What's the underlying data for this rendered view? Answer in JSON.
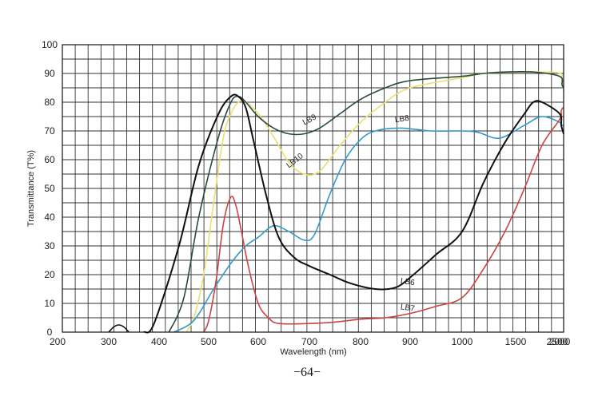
{
  "chart_data": {
    "type": "line",
    "xlabel": "Wavelength (nm)",
    "ylabel": "Transmittance (T%)",
    "ylim": [
      0,
      100
    ],
    "grid": true,
    "x_ticks": [
      "200",
      "300",
      "400",
      "500",
      "600",
      "700",
      "800",
      "900",
      "1000",
      "1500",
      "2000",
      "2500"
    ],
    "y_ticks": [
      "0",
      "10",
      "20",
      "30",
      "40",
      "50",
      "60",
      "70",
      "80",
      "90",
      "100"
    ],
    "x_tick_values": [
      200,
      300,
      400,
      500,
      600,
      700,
      800,
      900,
      1000,
      1500,
      2000,
      2500
    ],
    "series": [
      {
        "name": "LB6",
        "color": "#111111",
        "points": [
          [
            370,
            0
          ],
          [
            390,
            3
          ],
          [
            440,
            30
          ],
          [
            480,
            58
          ],
          [
            520,
            76
          ],
          [
            545,
            82
          ],
          [
            560,
            82
          ],
          [
            575,
            78
          ],
          [
            590,
            67
          ],
          [
            615,
            48
          ],
          [
            640,
            33
          ],
          [
            670,
            26
          ],
          [
            700,
            23
          ],
          [
            740,
            20
          ],
          [
            780,
            17
          ],
          [
            830,
            15
          ],
          [
            870,
            15.5
          ],
          [
            900,
            19
          ],
          [
            950,
            27
          ],
          [
            1000,
            35
          ],
          [
            1200,
            52
          ],
          [
            1400,
            66
          ],
          [
            1600,
            76
          ],
          [
            1700,
            80
          ],
          [
            1800,
            80
          ],
          [
            2000,
            76
          ],
          [
            2200,
            72
          ],
          [
            2500,
            69
          ]
        ]
      },
      {
        "name": "LB7",
        "color": "#cc4444",
        "points": [
          [
            490,
            0
          ],
          [
            500,
            4
          ],
          [
            515,
            18
          ],
          [
            530,
            38
          ],
          [
            545,
            47
          ],
          [
            555,
            44
          ],
          [
            565,
            36
          ],
          [
            580,
            23
          ],
          [
            600,
            10
          ],
          [
            620,
            5
          ],
          [
            640,
            3
          ],
          [
            700,
            3
          ],
          [
            750,
            3.5
          ],
          [
            800,
            4.5
          ],
          [
            850,
            5
          ],
          [
            900,
            6.5
          ],
          [
            950,
            9
          ],
          [
            1000,
            12
          ],
          [
            1200,
            22
          ],
          [
            1400,
            35
          ],
          [
            1600,
            50
          ],
          [
            1800,
            65
          ],
          [
            2000,
            74
          ],
          [
            2200,
            77
          ],
          [
            2400,
            78
          ],
          [
            2500,
            78
          ]
        ]
      },
      {
        "name": "LB8",
        "color": "#3399cc",
        "points": [
          [
            430,
            0
          ],
          [
            470,
            4
          ],
          [
            510,
            15
          ],
          [
            545,
            24
          ],
          [
            575,
            30
          ],
          [
            600,
            33
          ],
          [
            630,
            37
          ],
          [
            660,
            35
          ],
          [
            690,
            32
          ],
          [
            710,
            34
          ],
          [
            740,
            48
          ],
          [
            770,
            60
          ],
          [
            800,
            67
          ],
          [
            830,
            70
          ],
          [
            880,
            71
          ],
          [
            940,
            70
          ],
          [
            1000,
            70
          ],
          [
            1150,
            69.5
          ],
          [
            1350,
            67.5
          ],
          [
            1600,
            72
          ],
          [
            1800,
            75
          ],
          [
            2000,
            73
          ],
          [
            2250,
            72
          ],
          [
            2500,
            72
          ]
        ]
      },
      {
        "name": "LB9",
        "color": "#2a4a3a",
        "points": [
          [
            420,
            0
          ],
          [
            450,
            12
          ],
          [
            480,
            40
          ],
          [
            520,
            68
          ],
          [
            545,
            80
          ],
          [
            560,
            82
          ],
          [
            575,
            80
          ],
          [
            600,
            75
          ],
          [
            630,
            71
          ],
          [
            660,
            69
          ],
          [
            690,
            69
          ],
          [
            720,
            71
          ],
          [
            760,
            76
          ],
          [
            800,
            81
          ],
          [
            850,
            85
          ],
          [
            900,
            87.5
          ],
          [
            1000,
            89
          ],
          [
            1200,
            90
          ],
          [
            1400,
            90.5
          ],
          [
            1700,
            90.5
          ],
          [
            2000,
            89
          ],
          [
            2300,
            86
          ],
          [
            2500,
            85
          ]
        ]
      },
      {
        "name": "LB10",
        "color": "#e8e070",
        "points": [
          [
            455,
            0
          ],
          [
            470,
            5
          ],
          [
            490,
            20
          ],
          [
            510,
            45
          ],
          [
            530,
            68
          ],
          [
            545,
            76
          ],
          [
            560,
            80
          ],
          [
            575,
            80
          ],
          [
            600,
            76
          ],
          [
            630,
            68
          ],
          [
            660,
            59
          ],
          [
            690,
            55
          ],
          [
            720,
            56
          ],
          [
            760,
            65
          ],
          [
            800,
            73
          ],
          [
            850,
            80
          ],
          [
            900,
            85
          ],
          [
            1000,
            88.5
          ],
          [
            1200,
            90
          ],
          [
            1500,
            90.5
          ],
          [
            1800,
            90.5
          ],
          [
            2100,
            90
          ],
          [
            2300,
            87
          ],
          [
            2500,
            84
          ]
        ]
      }
    ]
  },
  "page": {
    "number": "−64−"
  }
}
